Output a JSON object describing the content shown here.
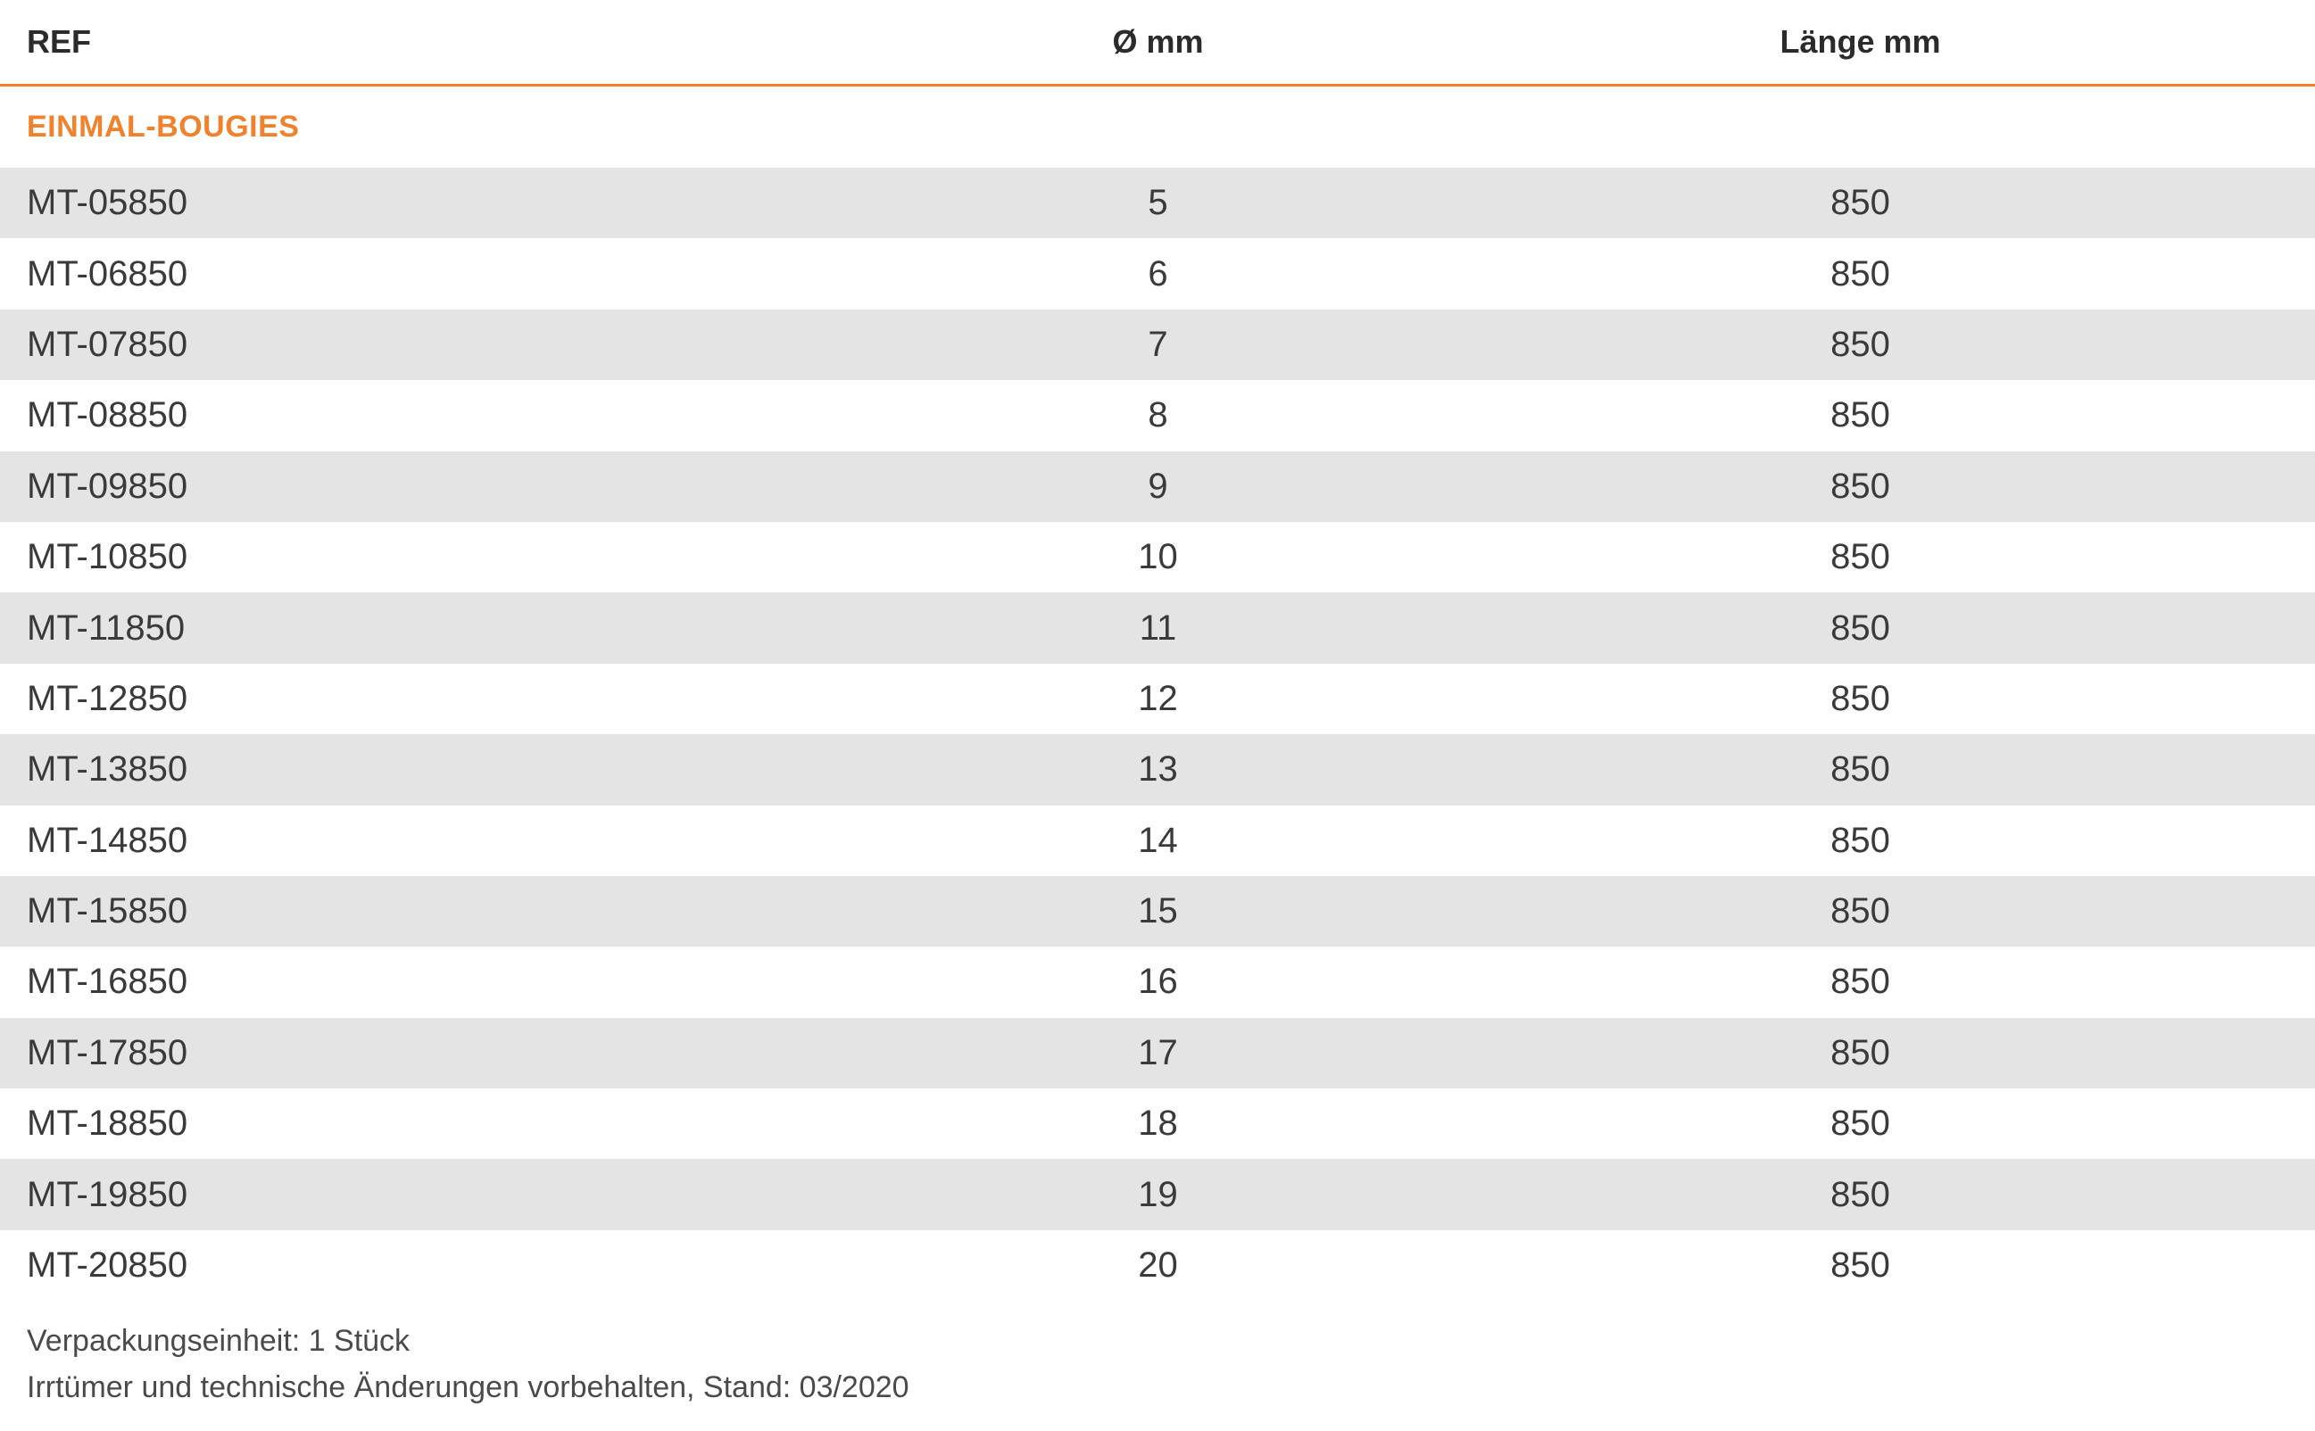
{
  "table": {
    "headers": {
      "ref": "REF",
      "diameter": "Ø mm",
      "length": "Länge mm"
    },
    "section_title": "EINMAL-BOUGIES",
    "rows": [
      {
        "ref": "MT-05850",
        "diameter": "5",
        "length": "850"
      },
      {
        "ref": "MT-06850",
        "diameter": "6",
        "length": "850"
      },
      {
        "ref": "MT-07850",
        "diameter": "7",
        "length": "850"
      },
      {
        "ref": "MT-08850",
        "diameter": "8",
        "length": "850"
      },
      {
        "ref": "MT-09850",
        "diameter": "9",
        "length": "850"
      },
      {
        "ref": "MT-10850",
        "diameter": "10",
        "length": "850"
      },
      {
        "ref": "MT-11850",
        "diameter": "11",
        "length": "850"
      },
      {
        "ref": "MT-12850",
        "diameter": "12",
        "length": "850"
      },
      {
        "ref": "MT-13850",
        "diameter": "13",
        "length": "850"
      },
      {
        "ref": "MT-14850",
        "diameter": "14",
        "length": "850"
      },
      {
        "ref": "MT-15850",
        "diameter": "15",
        "length": "850"
      },
      {
        "ref": "MT-16850",
        "diameter": "16",
        "length": "850"
      },
      {
        "ref": "MT-17850",
        "diameter": "17",
        "length": "850"
      },
      {
        "ref": "MT-18850",
        "diameter": "18",
        "length": "850"
      },
      {
        "ref": "MT-19850",
        "diameter": "19",
        "length": "850"
      },
      {
        "ref": "MT-20850",
        "diameter": "20",
        "length": "850"
      }
    ]
  },
  "footer": {
    "packaging": "Verpackungseinheit: 1 Stück",
    "disclaimer": "Irrtümer und technische Änderungen vorbehalten, Stand: 03/2020"
  },
  "colors": {
    "accent": "#f0822d",
    "row_shade": "#e4e4e4",
    "text": "#3a3a3a"
  }
}
